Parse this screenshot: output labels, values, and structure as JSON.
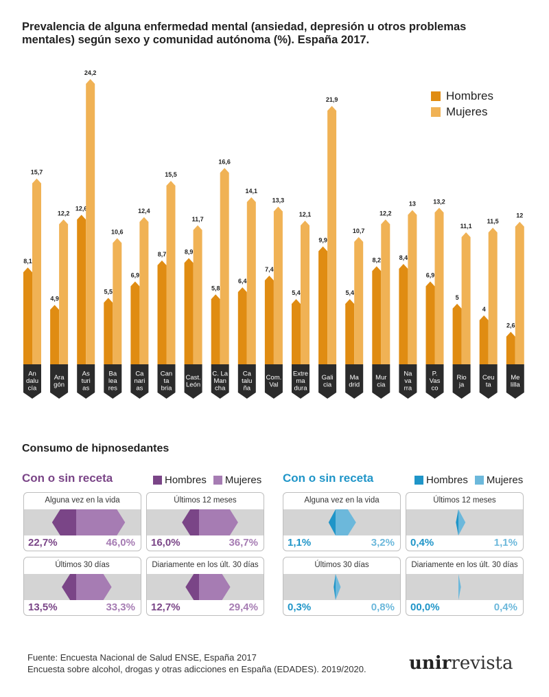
{
  "title": "Prevalencia de alguna enfermedad mental (ansiedad, depresión u otros problemas mentales) según sexo y comunidad autónoma (%). España 2017.",
  "colors": {
    "hombres": "#e08c12",
    "mujeres": "#f0b255",
    "label_bg": "#2b2b2b",
    "purple_m": "#7a4587",
    "purple_f": "#a67cb3",
    "blue_m": "#1f95c8",
    "blue_f": "#6cb8db"
  },
  "chart_data": [
    {
      "type": "bar",
      "categories": [
        [
          "An",
          "dalu",
          "cía"
        ],
        [
          "Ara",
          "gón"
        ],
        [
          "As",
          "turi",
          "as"
        ],
        [
          "Ba",
          "lea",
          "res"
        ],
        [
          "Ca",
          "nari",
          "as"
        ],
        [
          "Can",
          "ta",
          "bria"
        ],
        [
          "Cast.",
          "León"
        ],
        [
          "C. La",
          "Man",
          "cha"
        ],
        [
          "Ca",
          "talu",
          "ña"
        ],
        [
          "Com.",
          "Val"
        ],
        [
          "Extre",
          "ma",
          "dura"
        ],
        [
          "Gali",
          "cia"
        ],
        [
          "Ma",
          "drid"
        ],
        [
          "Mur",
          "cia"
        ],
        [
          "Na",
          "va",
          "rra"
        ],
        [
          "P.",
          "Vas",
          "co"
        ],
        [
          "Rio",
          "ja"
        ],
        [
          "Ceu",
          "ta"
        ],
        [
          "Me",
          "lilla"
        ]
      ],
      "series": [
        {
          "name": "Hombres",
          "values": [
            8.1,
            4.9,
            12.6,
            5.5,
            6.9,
            8.7,
            8.9,
            5.8,
            6.4,
            7.4,
            5.4,
            9.9,
            5.4,
            8.2,
            8.4,
            6.9,
            5,
            4,
            2.6
          ],
          "labels": [
            "8,1",
            "4,9",
            "12,6",
            "5,5",
            "6,9",
            "8,7",
            "8,9",
            "5,8",
            "6,4",
            "7,4",
            "5,4",
            "9,9",
            "5,4",
            "8,2",
            "8,4",
            "6,9",
            "5",
            "4",
            "2,6"
          ]
        },
        {
          "name": "Mujeres",
          "values": [
            15.7,
            12.2,
            24.2,
            10.6,
            12.4,
            15.5,
            11.7,
            16.6,
            14.1,
            13.3,
            12.1,
            21.9,
            10.7,
            12.2,
            13,
            13.2,
            11.1,
            11.5,
            12
          ],
          "labels": [
            "15,7",
            "12,2",
            "24,2",
            "10,6",
            "12,4",
            "15,5",
            "11,7",
            "16,6",
            "14,1",
            "13,3",
            "12,1",
            "21,9",
            "10,7",
            "12,2",
            "13",
            "13,2",
            "11,1",
            "11,5",
            "12"
          ]
        }
      ]
    },
    {
      "type": "bar",
      "title": "Con o sin receta",
      "series_names": [
        "Hombres",
        "Mujeres"
      ],
      "panels": [
        {
          "label": "Alguna vez en la vida",
          "hombres": 22.7,
          "mujeres": 46.0,
          "hombres_text": "22,7%",
          "mujeres_text": "46,0%"
        },
        {
          "label": "Últimos 12 meses",
          "hombres": 16.0,
          "mujeres": 36.7,
          "hombres_text": "16,0%",
          "mujeres_text": "36,7%"
        },
        {
          "label": "Últimos 30 días",
          "hombres": 13.5,
          "mujeres": 33.3,
          "hombres_text": "13,5%",
          "mujeres_text": "33,3%"
        },
        {
          "label": "Diariamente en los últ. 30 días",
          "hombres": 12.7,
          "mujeres": 29.4,
          "hombres_text": "12,7%",
          "mujeres_text": "29,4%"
        }
      ]
    },
    {
      "type": "bar",
      "title": "Con o sin receta",
      "series_names": [
        "Hombres",
        "Mujeres"
      ],
      "panels": [
        {
          "label": "Alguna vez en la vida",
          "hombres": 1.1,
          "mujeres": 3.2,
          "hombres_text": "1,1%",
          "mujeres_text": "3,2%"
        },
        {
          "label": "Últimos 12 meses",
          "hombres": 0.4,
          "mujeres": 1.1,
          "hombres_text": "0,4%",
          "mujeres_text": "1,1%"
        },
        {
          "label": "Últimos 30 días",
          "hombres": 0.3,
          "mujeres": 0.8,
          "hombres_text": "0,3%",
          "mujeres_text": "0,8%"
        },
        {
          "label": "Diariamente en los últ. 30 días",
          "hombres": 0.0,
          "mujeres": 0.4,
          "hombres_text": "00,0%",
          "mujeres_text": "0,4%"
        }
      ]
    }
  ],
  "legend": {
    "hombres": "Hombres",
    "mujeres": "Mujeres"
  },
  "section_title": "Consumo de hipnosedantes",
  "source_lines": [
    "Fuente: Encuesta Nacional de Salud ENSE, España 2017",
    "Encuesta sobre alcohol, drogas y otras adicciones en España (EDADES). 2019/2020."
  ],
  "logo": {
    "brand": "unir",
    "suffix": "revista"
  }
}
